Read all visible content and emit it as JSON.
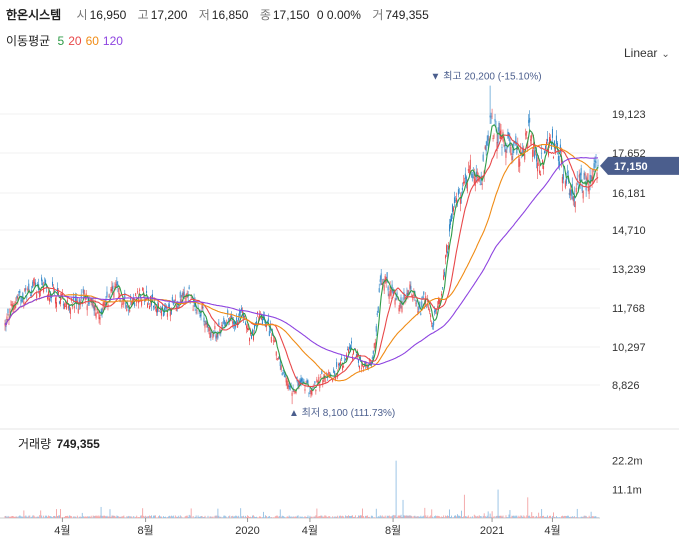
{
  "header": {
    "name": "한온시스템",
    "open_label": "시",
    "open": "16,950",
    "high_label": "고",
    "high": "17,200",
    "low_label": "저",
    "low": "16,850",
    "close_label": "종",
    "close": "17,150",
    "change": "0 0.00%",
    "volume_label": "거",
    "volume": "749,355"
  },
  "ma": {
    "label": "이동평균",
    "p5": "5",
    "p20": "20",
    "p60": "60",
    "p120": "120"
  },
  "scale": {
    "label": "Linear"
  },
  "volume_panel": {
    "label": "거래량",
    "value": "749,355"
  },
  "colors": {
    "up": "#e8484a",
    "down": "#2f86c7",
    "ma5": "#2e9b47",
    "ma20": "#e8484a",
    "ma60": "#f08c16",
    "ma120": "#8e44e0",
    "current_tag": "#4b5e8d"
  },
  "chart_data": {
    "type": "candlestick",
    "y_ticks": [
      "19,123",
      "17,652",
      "16,181",
      "14,710",
      "13,239",
      "11,768",
      "10,297",
      "8,826"
    ],
    "ylim": [
      7600,
      20800
    ],
    "x_ticks": [
      "4월",
      "8월",
      "2020",
      "4월",
      "8월",
      "2021",
      "4월"
    ],
    "volume_ticks": [
      "22.2m",
      "11.1m"
    ],
    "annotations": {
      "max": "최고 20,200 (-15.10%)",
      "min": "최저 8,100 (111.73%)",
      "current": "17,150"
    },
    "keypoints": {
      "x": [
        0,
        10,
        30,
        50,
        70,
        80,
        95,
        110,
        125,
        140,
        160,
        175,
        185,
        190,
        200,
        205,
        215,
        225,
        232,
        240,
        248,
        255,
        265,
        272,
        280,
        290,
        300,
        310,
        320,
        330,
        340,
        350,
        360,
        365,
        372,
        380,
        390,
        400,
        410,
        418,
        425,
        432,
        440,
        450,
        460,
        470,
        480,
        490,
        500,
        510,
        520,
        530,
        540,
        550,
        560,
        570,
        575,
        580,
        590,
        598
      ],
      "close": [
        11100,
        12000,
        12600,
        12300,
        11800,
        12200,
        11600,
        12500,
        11900,
        12300,
        11500,
        12000,
        12400,
        11900,
        11600,
        10900,
        10800,
        11400,
        11200,
        11600,
        10600,
        11400,
        11100,
        10500,
        9200,
        8700,
        8900,
        8600,
        9100,
        9200,
        9600,
        10200,
        9600,
        9400,
        9900,
        12900,
        12400,
        11700,
        12500,
        11500,
        12200,
        11100,
        12100,
        15000,
        16000,
        17200,
        16300,
        18800,
        18200,
        17900,
        17500,
        18500,
        17100,
        18100,
        17400,
        16300,
        16000,
        16500,
        16600,
        17150
      ]
    },
    "extremes": {
      "max": 20200,
      "min": 8100,
      "current": 17150
    },
    "volume_ylim": [
      0,
      24000000
    ]
  }
}
